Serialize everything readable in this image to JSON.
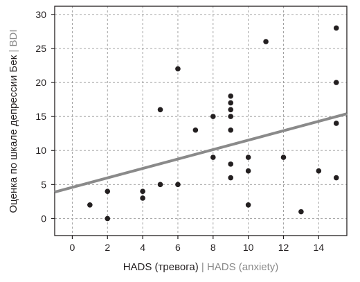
{
  "chart_data": {
    "type": "scatter",
    "xlabel": "HADS (тревога)",
    "xlabel_separator": " | ",
    "xlabel_en": "HADS (anxiety)",
    "ylabel": "Оценка по шкале депрессии Бек",
    "ylabel_separator": " | ",
    "ylabel_en": "BDI",
    "xlim": [
      -1,
      15.6
    ],
    "ylim": [
      -2.5,
      31.2
    ],
    "xticks": [
      0,
      2,
      4,
      6,
      8,
      10,
      12,
      14
    ],
    "yticks": [
      0,
      5,
      10,
      15,
      20,
      25,
      30
    ],
    "grid": true,
    "points": [
      {
        "x": 1,
        "y": 2
      },
      {
        "x": 2,
        "y": 0
      },
      {
        "x": 2,
        "y": 4
      },
      {
        "x": 4,
        "y": 3
      },
      {
        "x": 4,
        "y": 4
      },
      {
        "x": 5,
        "y": 5
      },
      {
        "x": 5,
        "y": 16
      },
      {
        "x": 6,
        "y": 5
      },
      {
        "x": 6,
        "y": 22
      },
      {
        "x": 7,
        "y": 13
      },
      {
        "x": 8,
        "y": 9
      },
      {
        "x": 8,
        "y": 15
      },
      {
        "x": 9,
        "y": 6
      },
      {
        "x": 9,
        "y": 8
      },
      {
        "x": 9,
        "y": 13
      },
      {
        "x": 9,
        "y": 15
      },
      {
        "x": 9,
        "y": 16
      },
      {
        "x": 9,
        "y": 17
      },
      {
        "x": 9,
        "y": 18
      },
      {
        "x": 10,
        "y": 2
      },
      {
        "x": 10,
        "y": 7
      },
      {
        "x": 10,
        "y": 9
      },
      {
        "x": 11,
        "y": 26
      },
      {
        "x": 12,
        "y": 9
      },
      {
        "x": 13,
        "y": 1
      },
      {
        "x": 14,
        "y": 7
      },
      {
        "x": 15,
        "y": 6
      },
      {
        "x": 15,
        "y": 14
      },
      {
        "x": 15,
        "y": 20
      },
      {
        "x": 15,
        "y": 28
      }
    ],
    "trendline": {
      "x": [
        -1,
        15.6
      ],
      "y": [
        3.9,
        15.4
      ]
    },
    "colors": {
      "points": "#231f20",
      "trendline": "#8a8a8a",
      "grid": "#9a9a9a",
      "axis": "#231f20"
    }
  }
}
